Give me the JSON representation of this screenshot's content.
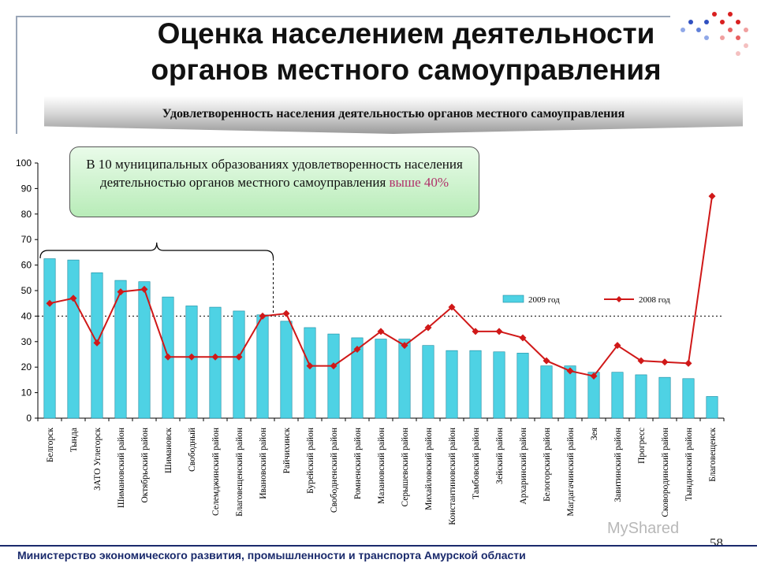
{
  "slide": {
    "title_line1": "Оценка населением деятельности",
    "title_line2": "органов местного самоуправления",
    "banner": "Удовлетворенность населения деятельностью органов местного самоуправления",
    "callout_text": "В 10 муниципальных образованиях удовлетворенность населения деятельностью органов местного самоуправления ",
    "callout_highlight": "выше 40%",
    "footer": "Министерство экономического развития, промышленности и транспорта Амурской области",
    "page_number": "58",
    "watermark": "MyShared",
    "colors": {
      "bar_fill": "#4ed2e4",
      "line_color": "#d01818",
      "footer_blue": "#1a2a6c",
      "highlight": "#b0306a"
    }
  },
  "chart_data": {
    "type": "bar",
    "ylim": [
      0,
      100
    ],
    "yticks": [
      0,
      10,
      20,
      30,
      40,
      50,
      60,
      70,
      80,
      90,
      100
    ],
    "reference_line": 40,
    "legend_placement": "top-right",
    "categories": [
      "Белгорск",
      "Тында",
      "ЗАТО Углегорск",
      "Шимановский район",
      "Октябрьский район",
      "Шимановск",
      "Свободный",
      "Селемджинский район",
      "Благовещенский район",
      "Ивановский район",
      "Райчихинск",
      "Бурейский район",
      "Свободненский район",
      "Ромненский район",
      "Мазановский район",
      "Серышевский район",
      "Михайловский район",
      "Константиновский район",
      "Тамбовский район",
      "Зейский район",
      "Архаринский район",
      "Белогорский район",
      "Магдагачинский район",
      "Зея",
      "Завитинский район",
      "Прогресс",
      "Сковородинский район",
      "Тындинский район",
      "Благовещенск"
    ],
    "series": [
      {
        "name": "2009 год",
        "kind": "bar",
        "values": [
          62.5,
          62,
          57,
          54,
          53.5,
          47.5,
          44,
          43.5,
          42,
          40.5,
          38,
          35.5,
          33,
          31.5,
          31,
          31,
          28.5,
          26.5,
          26.5,
          26,
          25.5,
          20.5,
          20.5,
          18,
          18,
          17,
          16,
          15.5,
          8.5
        ]
      },
      {
        "name": "2008 год",
        "kind": "line",
        "values": [
          45,
          47,
          29.5,
          49.5,
          50.5,
          24,
          24,
          24,
          24,
          40,
          41,
          20.5,
          20.5,
          27,
          34,
          28.5,
          35.5,
          43.5,
          34,
          34,
          31.5,
          22.5,
          18.5,
          16.5,
          28.5,
          22.5,
          22,
          21.5,
          87
        ]
      }
    ]
  }
}
